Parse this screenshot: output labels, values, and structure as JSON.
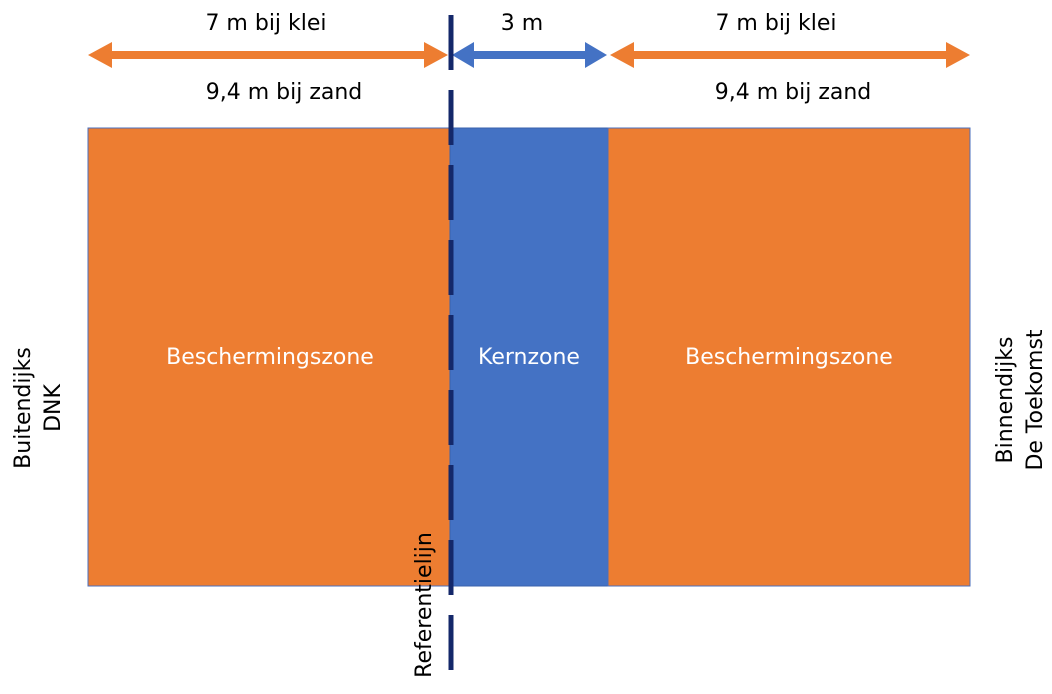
{
  "dimensions": {
    "left": {
      "clay": "7 m bij klei",
      "sand": "9,4 m bij zand"
    },
    "core": "3 m",
    "right": {
      "clay": "7 m bij klei",
      "sand": "9,4 m bij zand"
    }
  },
  "zones": [
    "Beschermingszone",
    "Kernzone",
    "Beschermingszone"
  ],
  "sides": {
    "left": [
      "Buitendijks",
      "DNK"
    ],
    "right": [
      "Binnendijks",
      "De Toekomst"
    ]
  },
  "reference_line": "Referentielijn"
}
